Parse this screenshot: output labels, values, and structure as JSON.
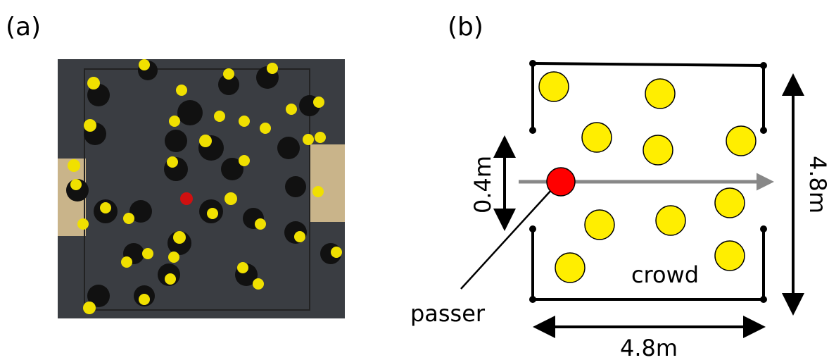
{
  "panel_a": {
    "label": "(a)"
  },
  "panel_b": {
    "label": "(b)",
    "gap_label": "0.4m",
    "height_label": "4.8m",
    "width_label": "4.8m",
    "crowd_label": "crowd",
    "passer_label": "passer"
  }
}
